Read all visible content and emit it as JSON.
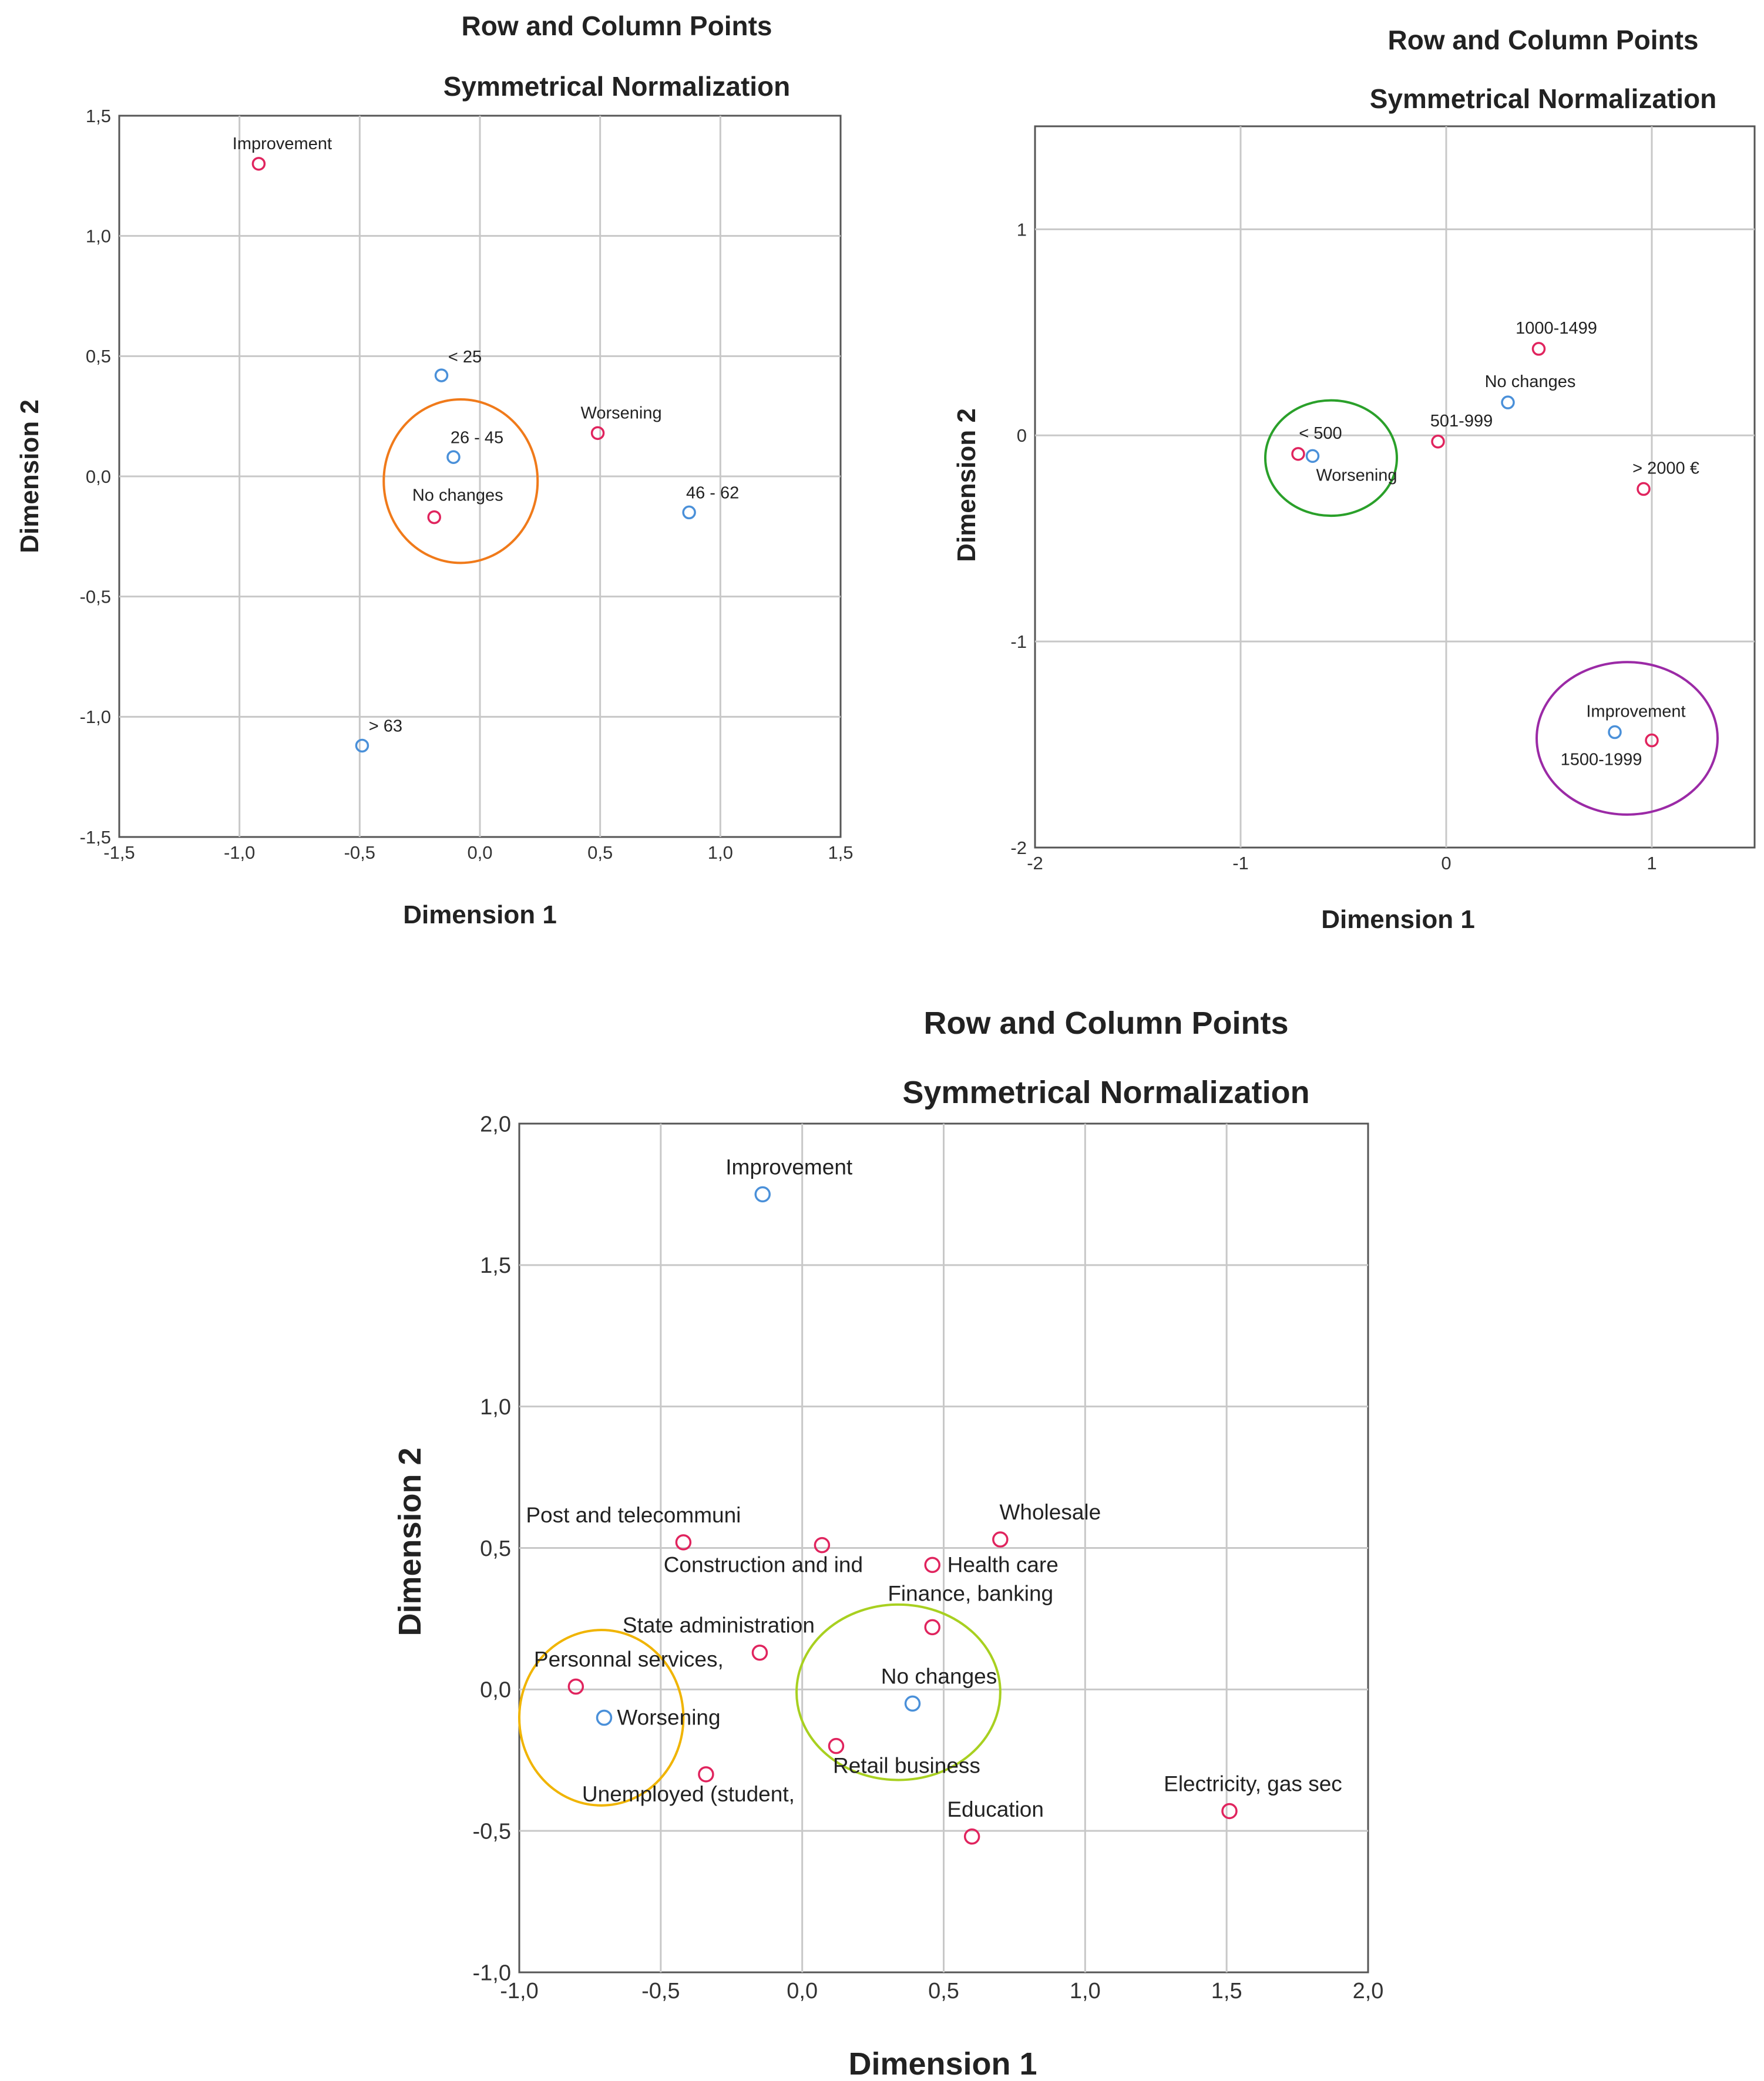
{
  "colors": {
    "row_point": "#e0245e",
    "col_point": "#4a90d9",
    "grid": "#c8c8c8",
    "frame": "#555555"
  },
  "chart_data": [
    {
      "type": "scatter",
      "title": "Row and Column Points",
      "subtitle": "Symmetrical Normalization",
      "xlabel": "Dimension 1",
      "ylabel": "Dimension 2",
      "xlim": [
        -1.5,
        1.5
      ],
      "ylim": [
        -1.5,
        1.5
      ],
      "xticks": [
        -1.5,
        -1.0,
        -0.5,
        0.0,
        0.5,
        1.0,
        1.5
      ],
      "yticks": [
        -1.5,
        -1.0,
        -0.5,
        0.0,
        0.5,
        1.0,
        1.5
      ],
      "xtick_labels": [
        "-1,5",
        "-1,0",
        "-0,5",
        "0,0",
        "0,5",
        "1,0",
        "1,5"
      ],
      "ytick_labels": [
        "-1,5",
        "-1,0",
        "-0,5",
        "0,0",
        "0,5",
        "1,0",
        "1,5"
      ],
      "grid": true,
      "series": [
        {
          "name": "rows",
          "color": "#e0245e",
          "points": [
            {
              "label": "Improvement",
              "x": -0.92,
              "y": 1.3
            },
            {
              "label": "Worsening",
              "x": 0.49,
              "y": 0.18
            },
            {
              "label": "No changes",
              "x": -0.19,
              "y": -0.17
            }
          ]
        },
        {
          "name": "columns",
          "color": "#4a90d9",
          "points": [
            {
              "label": "< 25",
              "x": -0.16,
              "y": 0.42
            },
            {
              "label": "26 - 45",
              "x": -0.11,
              "y": 0.08
            },
            {
              "label": "46 - 62",
              "x": 0.87,
              "y": -0.15
            },
            {
              "label": "> 63",
              "x": -0.49,
              "y": -1.12
            }
          ]
        }
      ],
      "annotations": [
        {
          "type": "circle",
          "color": "#f07a1a",
          "cx": -0.08,
          "cy": -0.02,
          "rx": 0.32,
          "ry": 0.34
        }
      ]
    },
    {
      "type": "scatter",
      "title": "Row and Column Points",
      "subtitle": "Symmetrical Normalization",
      "xlabel": "Dimension 1",
      "ylabel": "Dimension 2",
      "xlim": [
        -2,
        1.5
      ],
      "ylim": [
        -2,
        1.5
      ],
      "xticks": [
        -2,
        -1,
        0,
        1
      ],
      "yticks": [
        -2,
        -1,
        0,
        1
      ],
      "xtick_labels": [
        "-2",
        "-1",
        "0",
        "1"
      ],
      "ytick_labels": [
        "-2",
        "-1",
        "0",
        "1"
      ],
      "grid": true,
      "series": [
        {
          "name": "rows",
          "color": "#e0245e",
          "points": [
            {
              "label": "1000-1499",
              "x": 0.45,
              "y": 0.42
            },
            {
              "label": "501-999",
              "x": -0.04,
              "y": -0.03
            },
            {
              "label": "< 500",
              "x": -0.72,
              "y": -0.09
            },
            {
              "label": "> 2000 €",
              "x": 0.96,
              "y": -0.26
            },
            {
              "label": "1500-1999",
              "x": 1.0,
              "y": -1.48
            }
          ]
        },
        {
          "name": "columns",
          "color": "#4a90d9",
          "points": [
            {
              "label": "No changes",
              "x": 0.3,
              "y": 0.16
            },
            {
              "label": "Worsening",
              "x": -0.65,
              "y": -0.1
            },
            {
              "label": "Improvement",
              "x": 0.82,
              "y": -1.44
            }
          ]
        }
      ],
      "annotations": [
        {
          "type": "circle",
          "color": "#2aa02a",
          "cx": -0.56,
          "cy": -0.11,
          "rx": 0.32,
          "ry": 0.28
        },
        {
          "type": "circle",
          "color": "#9b2aa6",
          "cx": 0.88,
          "cy": -1.47,
          "rx": 0.44,
          "ry": 0.37
        }
      ]
    },
    {
      "type": "scatter",
      "title": "Row and Column Points",
      "subtitle": "Symmetrical Normalization",
      "xlabel": "Dimension 1",
      "ylabel": "Dimension 2",
      "xlim": [
        -1.0,
        2.0
      ],
      "ylim": [
        -1.0,
        2.0
      ],
      "xticks": [
        -1.0,
        -0.5,
        0.0,
        0.5,
        1.0,
        1.5,
        2.0
      ],
      "yticks": [
        -1.0,
        -0.5,
        0.0,
        0.5,
        1.0,
        1.5,
        2.0
      ],
      "xtick_labels": [
        "-1,0",
        "-0,5",
        "0,0",
        "0,5",
        "1,0",
        "1,5",
        "2,0"
      ],
      "ytick_labels": [
        "-1,0",
        "-0,5",
        "0,0",
        "0,5",
        "1,0",
        "1,5",
        "2,0"
      ],
      "grid": true,
      "series": [
        {
          "name": "rows",
          "color": "#e0245e",
          "points": [
            {
              "label": "Post and telecommuni",
              "x": -0.42,
              "y": 0.52
            },
            {
              "label": "Construction and ind",
              "x": 0.07,
              "y": 0.51
            },
            {
              "label": "Wholesale",
              "x": 0.7,
              "y": 0.53
            },
            {
              "label": "Health care",
              "x": 0.46,
              "y": 0.44
            },
            {
              "label": "Finance, banking",
              "x": 0.46,
              "y": 0.22
            },
            {
              "label": "State administration",
              "x": -0.15,
              "y": 0.13
            },
            {
              "label": "Personnal services,",
              "x": -0.8,
              "y": 0.01
            },
            {
              "label": "Retail business",
              "x": 0.12,
              "y": -0.2
            },
            {
              "label": "Unemployed (student,",
              "x": -0.34,
              "y": -0.3
            },
            {
              "label": "Education",
              "x": 0.6,
              "y": -0.52
            },
            {
              "label": "Electricity, gas sec",
              "x": 1.51,
              "y": -0.43
            }
          ]
        },
        {
          "name": "columns",
          "color": "#4a90d9",
          "points": [
            {
              "label": "Improvement",
              "x": -0.14,
              "y": 1.75
            },
            {
              "label": "No changes",
              "x": 0.39,
              "y": -0.05
            },
            {
              "label": "Worsening",
              "x": -0.7,
              "y": -0.1
            }
          ]
        }
      ],
      "annotations": [
        {
          "type": "circle",
          "color": "#f0b400",
          "cx": -0.71,
          "cy": -0.1,
          "rx": 0.29,
          "ry": 0.31
        },
        {
          "type": "circle",
          "color": "#a8d020",
          "cx": 0.34,
          "cy": -0.01,
          "rx": 0.36,
          "ry": 0.31
        }
      ]
    }
  ]
}
